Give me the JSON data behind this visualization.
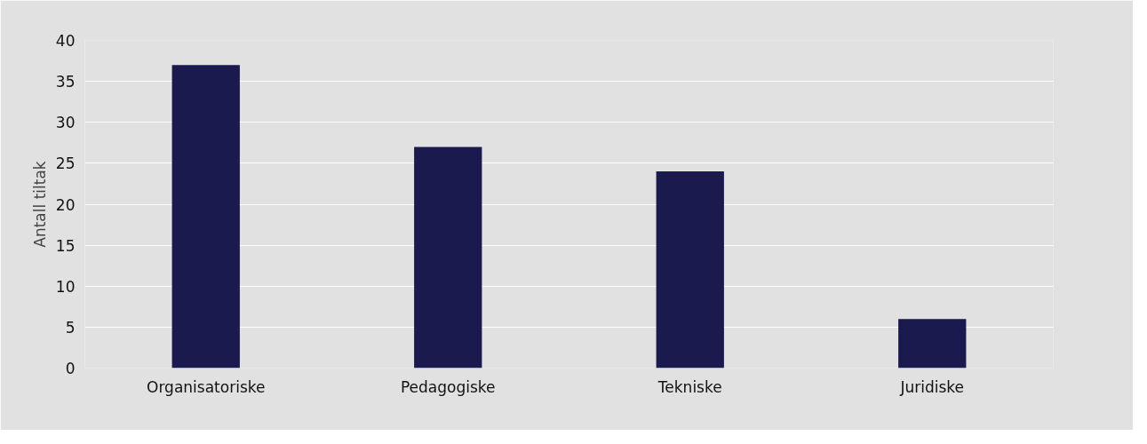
{
  "chart_data": {
    "type": "bar",
    "ylabel": "Antall tiltak",
    "categories": [
      "Organisatoriske",
      "Pedagogiske",
      "Tekniske",
      "Juridiske"
    ],
    "values": [
      37,
      27,
      24,
      6
    ],
    "color": "#1a1a4e",
    "ylim": [
      0,
      40
    ],
    "yticks": [
      0,
      5,
      10,
      15,
      20,
      25,
      30,
      35,
      40
    ],
    "grid": "y"
  }
}
